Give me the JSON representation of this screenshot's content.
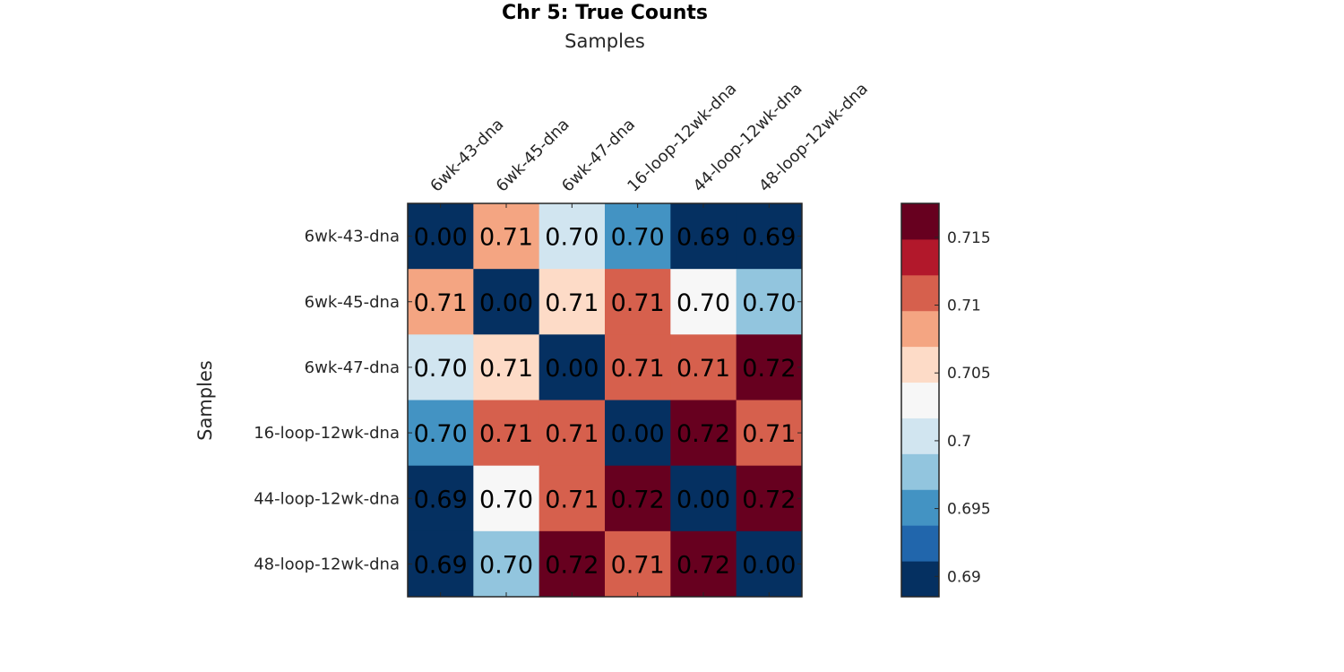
{
  "chart_data": {
    "type": "heatmap",
    "title": "Chr 5: True Counts",
    "xlabel": "Samples",
    "ylabel": "Samples",
    "x_categories": [
      "6wk-43-dna",
      "6wk-45-dna",
      "6wk-47-dna",
      "16-loop-12wk-dna",
      "44-loop-12wk-dna",
      "48-loop-12wk-dna"
    ],
    "y_categories": [
      "6wk-43-dna",
      "6wk-45-dna",
      "6wk-47-dna",
      "16-loop-12wk-dna",
      "44-loop-12wk-dna",
      "48-loop-12wk-dna"
    ],
    "values": [
      [
        0.0,
        0.708,
        0.701,
        0.696,
        0.69,
        0.69
      ],
      [
        0.708,
        0.0,
        0.706,
        0.711,
        0.702,
        0.699
      ],
      [
        0.701,
        0.706,
        0.0,
        0.711,
        0.711,
        0.716
      ],
      [
        0.696,
        0.711,
        0.711,
        0.0,
        0.716,
        0.711
      ],
      [
        0.69,
        0.702,
        0.711,
        0.716,
        0.0,
        0.716
      ],
      [
        0.69,
        0.699,
        0.716,
        0.711,
        0.716,
        0.0
      ]
    ],
    "cell_labels": [
      [
        "0.00",
        "0.71",
        "0.70",
        "0.70",
        "0.69",
        "0.69"
      ],
      [
        "0.71",
        "0.00",
        "0.71",
        "0.71",
        "0.70",
        "0.70"
      ],
      [
        "0.70",
        "0.71",
        "0.00",
        "0.71",
        "0.71",
        "0.72"
      ],
      [
        "0.70",
        "0.71",
        "0.71",
        "0.00",
        "0.72",
        "0.71"
      ],
      [
        "0.69",
        "0.70",
        "0.71",
        "0.72",
        "0.00",
        "0.72"
      ],
      [
        "0.69",
        "0.70",
        "0.72",
        "0.71",
        "0.72",
        "0.00"
      ]
    ],
    "colorbar": {
      "range": [
        0.6885,
        0.7175
      ],
      "ticks": [
        0.69,
        0.695,
        0.7,
        0.705,
        0.71,
        0.715
      ],
      "tick_labels": [
        "0.69",
        "0.695",
        "0.7",
        "0.705",
        "0.71",
        "0.715"
      ],
      "colors": [
        "#053061",
        "#2166ac",
        "#4393c3",
        "#92c5de",
        "#d1e5f0",
        "#f7f7f7",
        "#fddbc7",
        "#f4a582",
        "#d6604d",
        "#b2182b",
        "#67001f"
      ],
      "position": "right"
    },
    "x_axis_position": "top",
    "grid": false
  }
}
